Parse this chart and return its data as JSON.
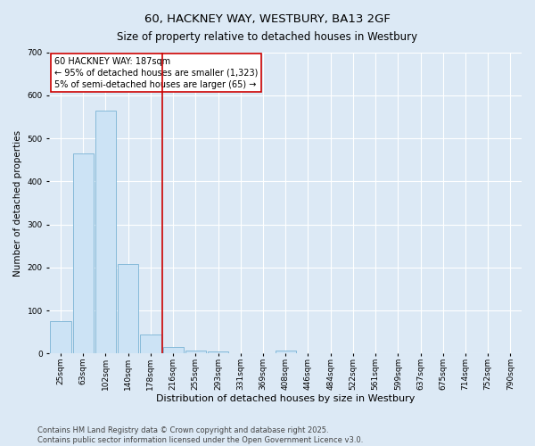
{
  "title": "60, HACKNEY WAY, WESTBURY, BA13 2GF",
  "subtitle": "Size of property relative to detached houses in Westbury",
  "xlabel": "Distribution of detached houses by size in Westbury",
  "ylabel": "Number of detached properties",
  "categories": [
    "25sqm",
    "63sqm",
    "102sqm",
    "140sqm",
    "178sqm",
    "216sqm",
    "255sqm",
    "293sqm",
    "331sqm",
    "369sqm",
    "408sqm",
    "446sqm",
    "484sqm",
    "522sqm",
    "561sqm",
    "599sqm",
    "637sqm",
    "675sqm",
    "714sqm",
    "752sqm",
    "790sqm"
  ],
  "values": [
    75,
    465,
    565,
    207,
    45,
    15,
    8,
    4,
    0,
    0,
    7,
    0,
    0,
    0,
    0,
    0,
    0,
    0,
    0,
    0,
    0
  ],
  "bar_color": "#cce3f5",
  "bar_edge_color": "#7ab3d4",
  "vline_color": "#cc0000",
  "annotation_text": "60 HACKNEY WAY: 187sqm\n← 95% of detached houses are smaller (1,323)\n5% of semi-detached houses are larger (65) →",
  "annotation_box_color": "#ffffff",
  "annotation_box_edge": "#cc0000",
  "footer": "Contains HM Land Registry data © Crown copyright and database right 2025.\nContains public sector information licensed under the Open Government Licence v3.0.",
  "background_color": "#dce9f5",
  "plot_bg_color": "#dce9f5",
  "ylim": [
    0,
    700
  ],
  "yticks": [
    0,
    100,
    200,
    300,
    400,
    500,
    600,
    700
  ],
  "title_fontsize": 9.5,
  "subtitle_fontsize": 8.5,
  "xlabel_fontsize": 8,
  "ylabel_fontsize": 7.5,
  "tick_fontsize": 6.5,
  "annotation_fontsize": 7,
  "footer_fontsize": 6
}
